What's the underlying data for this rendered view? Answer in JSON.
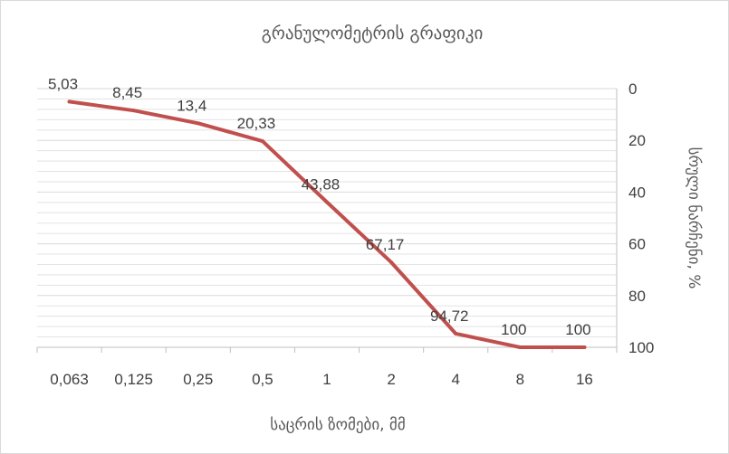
{
  "chart_data": {
    "type": "line",
    "title": "გრანულომეტრის გრაფიკი",
    "xlabel": "საცრის ზომები, მმ",
    "ylabel": "სრული ნარჩენი, %",
    "categories": [
      "0,063",
      "0,125",
      "0,25",
      "0,5",
      "1",
      "2",
      "4",
      "8",
      "16"
    ],
    "series": [
      {
        "values": [
          5.03,
          8.45,
          13.4,
          20.33,
          43.88,
          67.17,
          94.72,
          100,
          100
        ],
        "labels": [
          "5,03",
          "8,45",
          "13,4",
          "20,33",
          "43,88",
          "67,17",
          "94,72",
          "100",
          "100"
        ],
        "color": "#c0504d"
      }
    ],
    "ylim": [
      0,
      100
    ],
    "y_reversed": true,
    "y_axis_position": "right",
    "y_ticks": [
      "0",
      "20",
      "40",
      "60",
      "80",
      "100"
    ],
    "grid": true
  }
}
